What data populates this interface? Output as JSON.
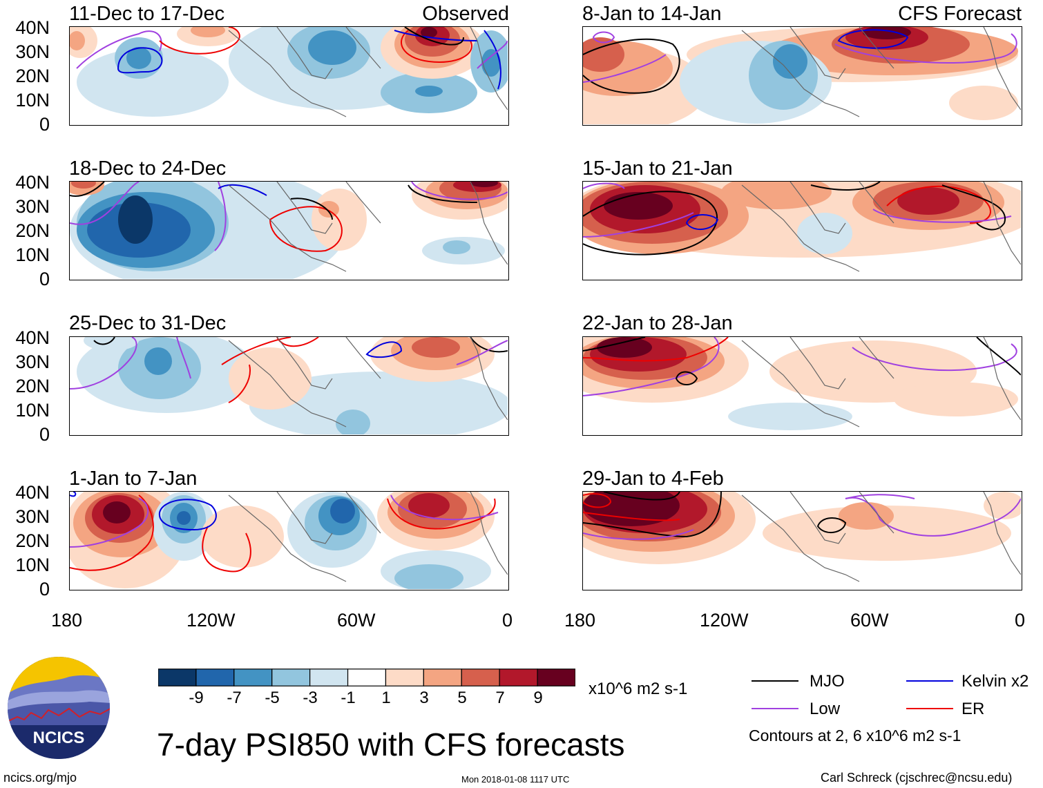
{
  "figure_title": "7-day PSI850 with CFS forecasts",
  "left_column_tag": "Observed",
  "right_column_tag": "CFS Forecast",
  "panels": {
    "left": [
      "11-Dec to 17-Dec",
      "18-Dec to 24-Dec",
      "25-Dec to 31-Dec",
      "1-Jan to 7-Jan"
    ],
    "right": [
      "8-Jan to 14-Jan",
      "15-Jan to 21-Jan",
      "22-Jan to 28-Jan",
      "29-Jan to 4-Feb"
    ]
  },
  "axes": {
    "lat_labels": [
      "40N",
      "30N",
      "20N",
      "10N",
      "0"
    ],
    "lon_labels": [
      "180",
      "120W",
      "60W",
      "0"
    ]
  },
  "colorbar": {
    "labels": [
      "-9",
      "-7",
      "-5",
      "-3",
      "-1",
      "1",
      "3",
      "5",
      "7",
      "9"
    ],
    "colors": [
      "#0b3768",
      "#2166ac",
      "#4393c3",
      "#92c5de",
      "#d1e5f0",
      "#ffffff",
      "#fddbc7",
      "#f4a582",
      "#d6604d",
      "#b2182b",
      "#67001f"
    ],
    "units": "x10^6 m2 s-1"
  },
  "legend": {
    "items": [
      {
        "label": "MJO",
        "color": "#000000"
      },
      {
        "label": "Kelvin x2",
        "color": "#0000dd"
      },
      {
        "label": "Low",
        "color": "#a040e0"
      },
      {
        "label": "ER",
        "color": "#ee0000"
      }
    ],
    "note": "Contours at 2, 6 x10^6 m2 s-1"
  },
  "logo": {
    "text": "NCICS"
  },
  "footer": {
    "url": "ncics.org/mjo",
    "timestamp": "Mon 2018-01-08 1117 UTC",
    "credit": "Carl Schreck (cjschrec@ncsu.edu)"
  }
}
